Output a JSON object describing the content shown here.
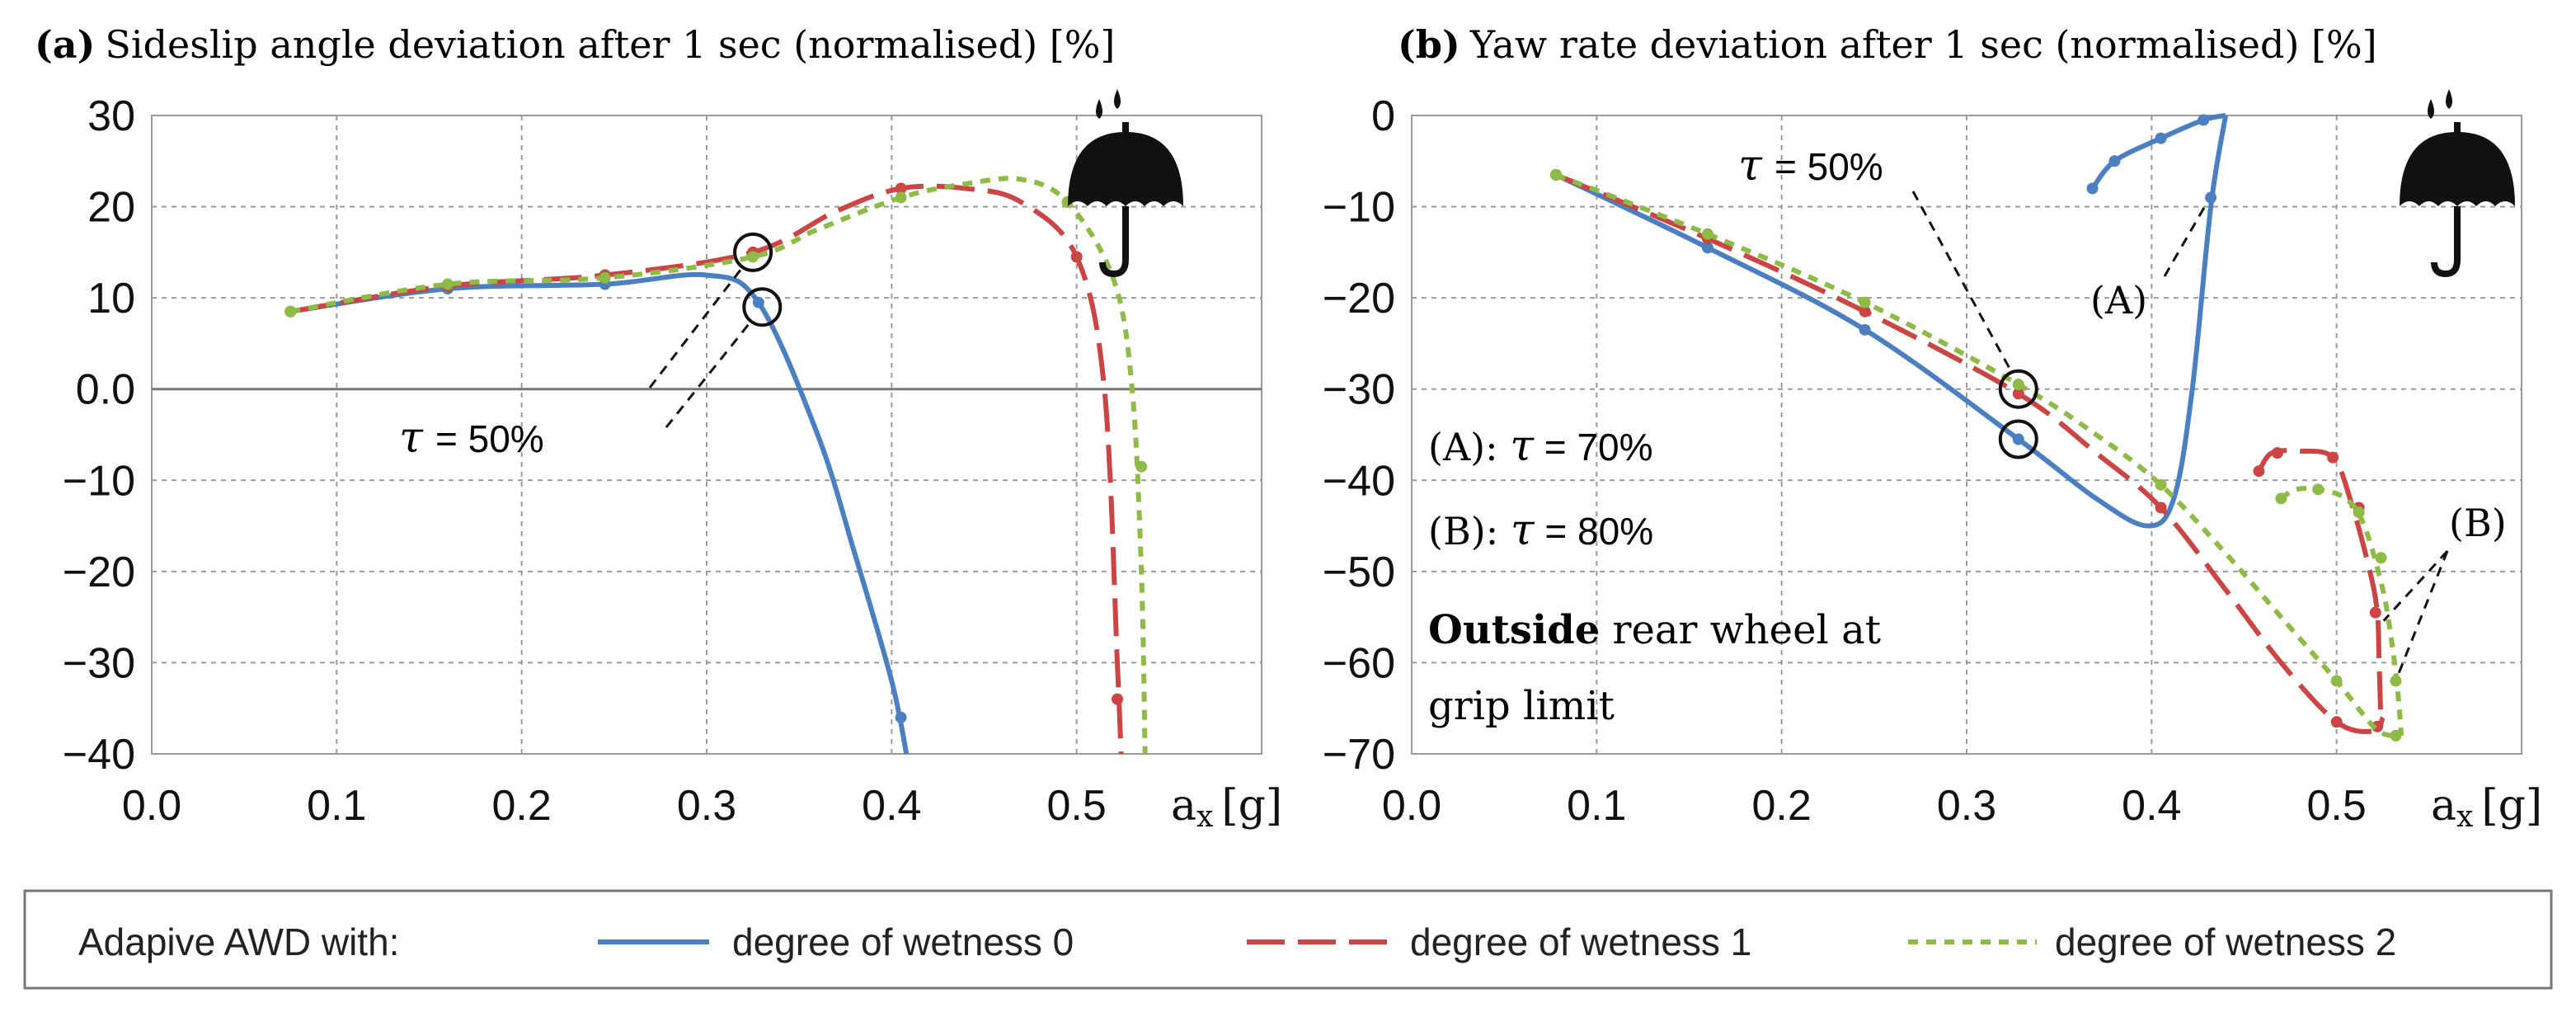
{
  "legend": {
    "title": "Adapive AWD with:",
    "entries": [
      {
        "label": "degree of wetness 0",
        "color": "#4a7fc1",
        "dash": "solid"
      },
      {
        "label": "degree of wetness 1",
        "color": "#cc4444",
        "dash": "long"
      },
      {
        "label": "degree of wetness 2",
        "color": "#8dbb45",
        "dash": "short"
      }
    ]
  },
  "chart_data": [
    {
      "type": "line",
      "panel_letter": "a",
      "title": "Sideslip angle deviation after 1 sec (normalised) [%]",
      "xlabel": "ax [g]",
      "xlabel_main": "a",
      "xlabel_sub": "x",
      "xlabel_unit": "[g]",
      "xlim": [
        0.0,
        0.6
      ],
      "ylim": [
        -40,
        30
      ],
      "xticks": [
        0.0,
        0.1,
        0.2,
        0.3,
        0.4,
        0.5
      ],
      "xtick_labels": [
        "0.0",
        "0.1",
        "0.2",
        "0.3",
        "0.4",
        "0.5"
      ],
      "yticks": [
        30,
        20,
        10,
        0,
        -10,
        -20,
        -30,
        -40
      ],
      "ytick_labels": [
        "30",
        "20",
        "10",
        "0.0",
        "−10",
        "−20",
        "−30",
        "−40"
      ],
      "grid": true,
      "series": [
        {
          "name": "degree of wetness 0",
          "color": "#4a7fc1",
          "dash": "solid",
          "x": [
            0.075,
            0.16,
            0.245,
            0.3,
            0.328,
            0.36,
            0.38,
            0.4,
            0.408
          ],
          "y": [
            8.5,
            11.0,
            11.5,
            12.5,
            9.5,
            -5.0,
            -18.0,
            -32.0,
            -40.0
          ],
          "markers_x": [
            0.075,
            0.16,
            0.245,
            0.328,
            0.405
          ],
          "markers_y": [
            8.5,
            11.0,
            11.5,
            9.5,
            -36.0
          ]
        },
        {
          "name": "degree of wetness 1",
          "color": "#cc4444",
          "dash": "long",
          "x": [
            0.075,
            0.16,
            0.245,
            0.325,
            0.37,
            0.405,
            0.44,
            0.47,
            0.5,
            0.515,
            0.522,
            0.524
          ],
          "y": [
            8.5,
            11.3,
            12.5,
            15.0,
            19.5,
            22.0,
            22.0,
            20.5,
            14.5,
            0.0,
            -30.0,
            -40.0
          ],
          "markers_x": [
            0.075,
            0.16,
            0.245,
            0.325,
            0.405,
            0.5,
            0.522
          ],
          "markers_y": [
            8.5,
            11.3,
            12.5,
            15.0,
            22.0,
            14.5,
            -34.0
          ]
        },
        {
          "name": "degree of wetness 2",
          "color": "#8dbb45",
          "dash": "short",
          "x": [
            0.075,
            0.16,
            0.245,
            0.325,
            0.36,
            0.405,
            0.44,
            0.47,
            0.495,
            0.52,
            0.53,
            0.535,
            0.537
          ],
          "y": [
            8.5,
            11.5,
            12.2,
            14.5,
            17.5,
            21.0,
            22.5,
            23.0,
            20.5,
            12.0,
            0.0,
            -20.0,
            -40.0
          ],
          "markers_x": [
            0.075,
            0.16,
            0.245,
            0.325,
            0.405,
            0.495,
            0.535
          ],
          "markers_y": [
            8.5,
            11.5,
            12.2,
            14.5,
            21.0,
            20.5,
            -8.5
          ]
        }
      ],
      "annotations": {
        "tau_symbol": "τ",
        "tau_label": " = 50%",
        "circles": [
          {
            "x": 0.325,
            "y": 15.0
          },
          {
            "x": 0.33,
            "y": 9.0
          }
        ]
      }
    },
    {
      "type": "line",
      "panel_letter": "b",
      "title": "Yaw rate deviation after 1 sec (normalised) [%]",
      "xlabel": "ax [g]",
      "xlabel_main": "a",
      "xlabel_sub": "x",
      "xlabel_unit": "[g]",
      "xlim": [
        0.0,
        0.6
      ],
      "ylim": [
        -70,
        0
      ],
      "xticks": [
        0.0,
        0.1,
        0.2,
        0.3,
        0.4,
        0.5
      ],
      "xtick_labels": [
        "0.0",
        "0.1",
        "0.2",
        "0.3",
        "0.4",
        "0.5"
      ],
      "yticks": [
        0,
        -10,
        -20,
        -30,
        -40,
        -50,
        -60,
        -70
      ],
      "ytick_labels": [
        "0",
        "−10",
        "−20",
        "−30",
        "−40",
        "−50",
        "−60",
        "−70"
      ],
      "grid": true,
      "series": [
        {
          "name": "degree of wetness 0 (τ = 50%)",
          "color": "#4a7fc1",
          "dash": "solid",
          "x": [
            0.078,
            0.16,
            0.245,
            0.328,
            0.37,
            0.398,
            0.412,
            0.422,
            0.432,
            0.44
          ],
          "y": [
            -6.5,
            -14.5,
            -23.5,
            -35.5,
            -42.0,
            -45.0,
            -42.0,
            -30.0,
            -10.0,
            0.0
          ],
          "markers_x": [
            0.078,
            0.16,
            0.245,
            0.328,
            0.432
          ],
          "markers_y": [
            -6.5,
            -14.5,
            -23.5,
            -35.5,
            -9.0
          ]
        },
        {
          "name": "degree of wetness 0 (τ = 70%)",
          "color": "#4a7fc1",
          "dash": "solid",
          "x": [
            0.368,
            0.38,
            0.405,
            0.428,
            0.44
          ],
          "y": [
            -8.0,
            -5.0,
            -2.5,
            -0.5,
            0.0
          ],
          "markers_x": [
            0.368,
            0.38,
            0.405,
            0.428
          ],
          "markers_y": [
            -8.0,
            -5.0,
            -2.5,
            -0.5
          ]
        },
        {
          "name": "degree of wetness 1 (τ = 50%)",
          "color": "#cc4444",
          "dash": "long",
          "x": [
            0.078,
            0.16,
            0.245,
            0.328,
            0.37,
            0.405,
            0.44,
            0.47,
            0.5,
            0.52,
            0.525
          ],
          "y": [
            -6.5,
            -13.5,
            -21.5,
            -30.5,
            -37.0,
            -43.0,
            -52.0,
            -60.0,
            -66.5,
            -67.5,
            -66.0
          ],
          "markers_x": [
            0.078,
            0.16,
            0.245,
            0.328,
            0.405,
            0.5,
            0.522
          ],
          "markers_y": [
            -6.5,
            -13.5,
            -21.5,
            -30.5,
            -43.0,
            -66.5,
            -67.0
          ]
        },
        {
          "name": "degree of wetness 1 (τ = 80%)",
          "color": "#cc4444",
          "dash": "long",
          "x": [
            0.458,
            0.465,
            0.48,
            0.498,
            0.508,
            0.518,
            0.522,
            0.523,
            0.524
          ],
          "y": [
            -39.0,
            -37.0,
            -36.8,
            -37.5,
            -42.5,
            -50.0,
            -54.5,
            -60.0,
            -67.0
          ],
          "markers_x": [
            0.458,
            0.468,
            0.498,
            0.512,
            0.521
          ],
          "markers_y": [
            -39.0,
            -37.0,
            -37.5,
            -43.0,
            -54.5
          ]
        },
        {
          "name": "degree of wetness 2 (τ = 50%)",
          "color": "#8dbb45",
          "dash": "short",
          "x": [
            0.078,
            0.16,
            0.245,
            0.328,
            0.37,
            0.405,
            0.44,
            0.47,
            0.5,
            0.52,
            0.53,
            0.535
          ],
          "y": [
            -6.5,
            -13.0,
            -20.5,
            -29.5,
            -35.0,
            -40.5,
            -48.0,
            -55.0,
            -62.0,
            -67.0,
            -68.0,
            -67.5
          ],
          "markers_x": [
            0.078,
            0.16,
            0.245,
            0.328,
            0.405,
            0.5,
            0.532
          ],
          "markers_y": [
            -6.5,
            -13.0,
            -20.5,
            -29.5,
            -40.5,
            -62.0,
            -68.0
          ]
        },
        {
          "name": "degree of wetness 2 (τ = 80%)",
          "color": "#8dbb45",
          "dash": "short",
          "x": [
            0.47,
            0.478,
            0.49,
            0.505,
            0.515,
            0.525,
            0.53,
            0.533,
            0.535
          ],
          "y": [
            -42.0,
            -41.0,
            -41.0,
            -42.0,
            -45.0,
            -52.0,
            -58.0,
            -63.0,
            -68.0
          ],
          "markers_x": [
            0.47,
            0.49,
            0.512,
            0.524,
            0.532
          ],
          "markers_y": [
            -42.0,
            -41.0,
            -43.5,
            -48.5,
            -62.0
          ]
        }
      ],
      "annotations": {
        "tau_symbol": "τ",
        "tau_label": " = 50%",
        "label_A": "(A)",
        "label_B": "(B)",
        "note_A_prefix": "(A): ",
        "note_A_value": " = 70%",
        "note_B_prefix": "(B): ",
        "note_B_value": " = 80%",
        "note_bold": "Outside",
        "note_rest_1": " rear wheel at",
        "note_rest_2": "grip limit",
        "circles": [
          {
            "x": 0.328,
            "y": -30.0
          },
          {
            "x": 0.328,
            "y": -35.5
          }
        ]
      }
    }
  ]
}
